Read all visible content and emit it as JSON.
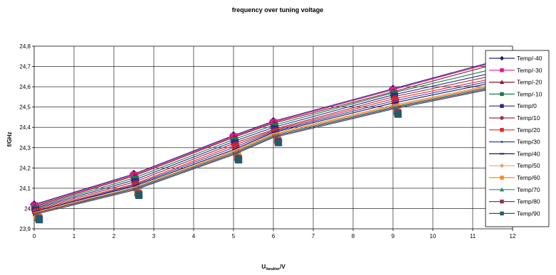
{
  "chart_data": {
    "type": "line",
    "title": "frequency over tuning voltage",
    "xlabel": {
      "main": "U",
      "sub": "Varaktor",
      "suffix": "/V"
    },
    "ylabel": "f/GHz",
    "xlim": [
      0,
      12
    ],
    "ylim": [
      23.9,
      24.8
    ],
    "x_ticks": [
      0,
      1,
      2,
      3,
      4,
      5,
      6,
      7,
      8,
      9,
      10,
      11,
      12
    ],
    "x_tick_labels": [
      "0",
      "1",
      "2",
      "3",
      "4",
      "5",
      "6",
      "7",
      "8",
      "9",
      "10",
      "11",
      "12"
    ],
    "y_ticks": [
      23.9,
      24.0,
      24.1,
      24.2,
      24.3,
      24.4,
      24.5,
      24.6,
      24.7,
      24.8
    ],
    "y_tick_labels": [
      "23,9",
      "24",
      "24,1",
      "24,2",
      "24,3",
      "24,4",
      "24,5",
      "24,6",
      "24,7",
      "24,8"
    ],
    "grid": true,
    "legend_position": "right",
    "x": [
      0,
      2.5,
      5,
      6,
      9,
      12
    ],
    "series": [
      {
        "name": "Temp/-40",
        "color": "#1f1f7a",
        "marker": "diamond",
        "values": [
          24.02,
          24.17,
          24.36,
          24.43,
          24.59,
          24.75
        ]
      },
      {
        "name": "Temp/-30",
        "color": "#e6168c",
        "marker": "square",
        "values": [
          24.015,
          24.165,
          24.355,
          24.425,
          24.585,
          24.745
        ]
      },
      {
        "name": "Temp/-20",
        "color": "#8b1a2b",
        "marker": "triangle",
        "values": [
          24.01,
          24.16,
          24.35,
          24.42,
          24.575,
          24.735
        ]
      },
      {
        "name": "Temp/-10",
        "color": "#1a7a4a",
        "marker": "square",
        "values": [
          24.005,
          24.15,
          24.34,
          24.41,
          24.57,
          24.71
        ]
      },
      {
        "name": "Temp/0",
        "color": "#2b2b8c",
        "marker": "square",
        "values": [
          24.0,
          24.14,
          24.33,
          24.4,
          24.56,
          24.69
        ]
      },
      {
        "name": "Temp/10",
        "color": "#a0303a",
        "marker": "circle",
        "values": [
          23.995,
          24.13,
          24.32,
          24.39,
          24.55,
          24.675
        ]
      },
      {
        "name": "Temp/20",
        "color": "#e8202a",
        "marker": "square",
        "values": [
          23.99,
          24.12,
          24.31,
          24.385,
          24.54,
          24.66
        ]
      },
      {
        "name": "Temp/30",
        "color": "#3040b0",
        "marker": "dot",
        "values": [
          23.985,
          24.115,
          24.3,
          24.38,
          24.53,
          24.65
        ]
      },
      {
        "name": "Temp/40",
        "color": "#1a1a5a",
        "marker": "dash",
        "values": [
          23.985,
          24.11,
          24.29,
          24.375,
          24.52,
          24.64
        ]
      },
      {
        "name": "Temp/50",
        "color": "#f0a070",
        "marker": "diamond",
        "values": [
          23.98,
          24.105,
          24.285,
          24.37,
          24.51,
          24.63
        ]
      },
      {
        "name": "Temp/60",
        "color": "#f08a20",
        "marker": "square",
        "values": [
          23.98,
          24.1,
          24.28,
          24.365,
          24.505,
          24.625
        ]
      },
      {
        "name": "Temp/70",
        "color": "#2a8a7a",
        "marker": "triangle",
        "values": [
          23.975,
          24.1,
          24.275,
          24.36,
          24.5,
          24.62
        ]
      },
      {
        "name": "Temp/80",
        "color": "#903060",
        "marker": "square",
        "values": [
          23.975,
          24.095,
          24.27,
          24.355,
          24.495,
          24.615
        ]
      },
      {
        "name": "Temp/90",
        "color": "#255a6a",
        "marker": "square",
        "values": [
          23.97,
          24.09,
          24.265,
          24.35,
          24.49,
          24.61
        ]
      }
    ]
  }
}
